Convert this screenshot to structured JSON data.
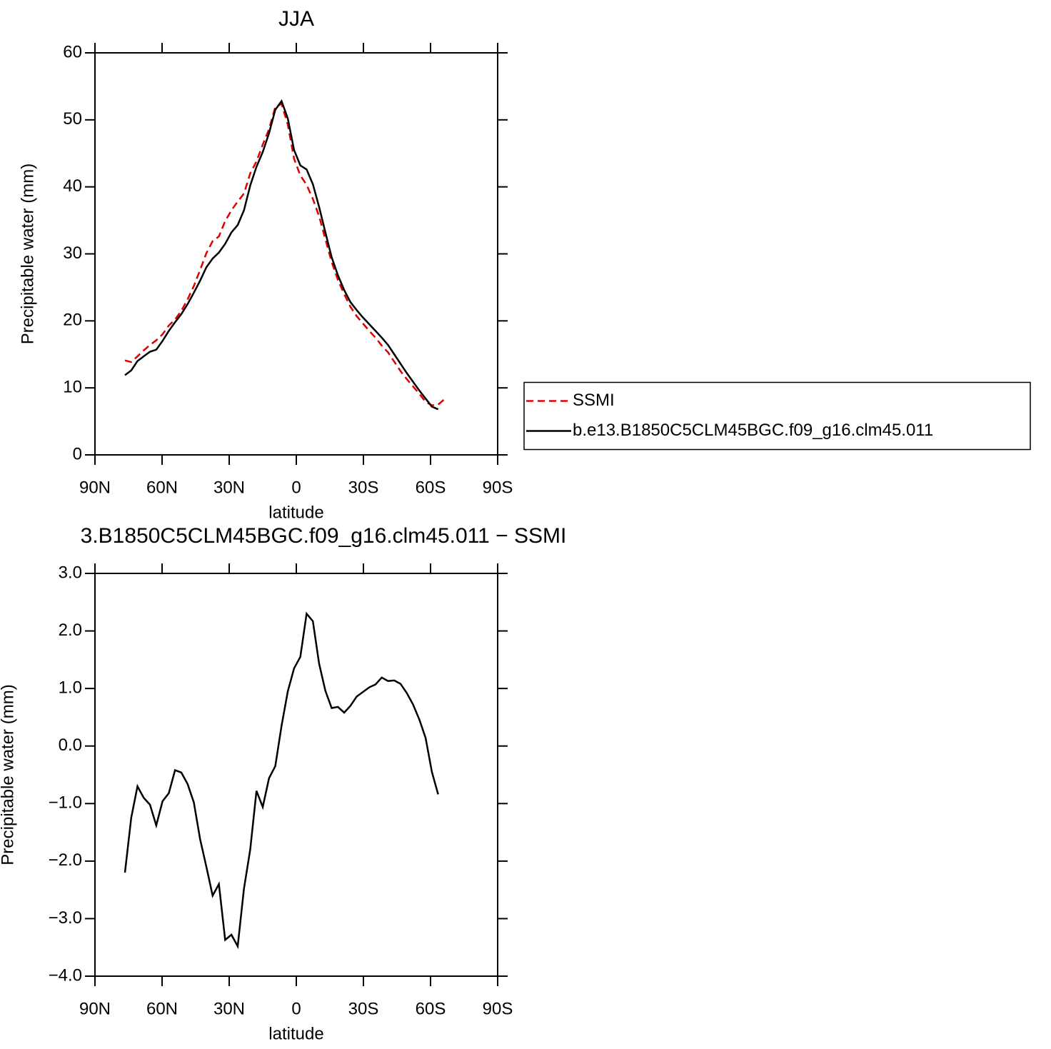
{
  "chart_data": [
    {
      "type": "line",
      "title": "JJA",
      "x_label": "latitude",
      "y_label": "Precipitable water (mm)",
      "x": [
        -76.6,
        -73.8,
        -71.0,
        -68.2,
        -65.4,
        -62.6,
        -59.8,
        -57.0,
        -54.2,
        -51.4,
        -48.6,
        -45.8,
        -43.0,
        -40.2,
        -37.4,
        -34.6,
        -31.8,
        -29.0,
        -26.2,
        -23.4,
        -20.6,
        -17.8,
        -15.0,
        -12.2,
        -9.4,
        -6.6,
        -3.8,
        -1.0,
        1.8,
        4.6,
        7.4,
        10.2,
        13.0,
        15.8,
        18.6,
        21.4,
        24.2,
        27.0,
        29.8,
        32.6,
        35.4,
        38.2,
        41.0,
        43.8,
        46.6,
        49.4,
        52.2,
        55.0,
        57.8,
        60.6,
        63.4,
        66.2
      ],
      "xlim": [
        -90,
        90
      ],
      "xticks": [
        {
          "value": -90,
          "label": "90N"
        },
        {
          "value": -60,
          "label": "60N"
        },
        {
          "value": -30,
          "label": "30N"
        },
        0,
        {
          "value": 30,
          "label": "30S"
        },
        {
          "value": 60,
          "label": "60S"
        },
        {
          "value": 90,
          "label": "90S"
        }
      ],
      "ylim": [
        0,
        60
      ],
      "yticks": [
        0,
        10,
        20,
        30,
        40,
        50,
        60
      ],
      "legend": "right",
      "series": [
        {
          "name": "SSMI",
          "color": "#e00000",
          "style": "dashed",
          "values": [
            14.1,
            13.85,
            14.7,
            15.6,
            16.4,
            17.1,
            18.0,
            19.3,
            20.2,
            21.5,
            23.2,
            25.2,
            27.6,
            30.1,
            31.9,
            32.6,
            34.9,
            36.5,
            37.8,
            39.0,
            42.0,
            43.8,
            46.3,
            48.6,
            51.9,
            52.4,
            49.3,
            44.2,
            41.7,
            40.3,
            38.2,
            35.6,
            32.2,
            28.8,
            26.1,
            24.0,
            22.1,
            20.7,
            19.6,
            18.5,
            17.5,
            16.3,
            15.3,
            13.9,
            12.5,
            11.3,
            10.2,
            9.1,
            7.9,
            7.4,
            7.5,
            8.3
          ]
        },
        {
          "name": "b.e13.B1850C5CLM45BGC.f09_g16.clm45.011",
          "color": "#000000",
          "style": "solid",
          "values": [
            11.9,
            12.6,
            14.0,
            14.7,
            15.4,
            15.7,
            17.0,
            18.5,
            19.8,
            21.0,
            22.5,
            24.2,
            26.0,
            28.0,
            29.3,
            30.2,
            31.5,
            33.2,
            34.3,
            36.5,
            40.2,
            43.0,
            45.2,
            48.0,
            51.5,
            52.8,
            50.2,
            45.5,
            43.2,
            42.6,
            40.4,
            37.0,
            33.2,
            29.5,
            26.8,
            24.6,
            22.8,
            21.6,
            20.5,
            19.5,
            18.5,
            17.5,
            16.4,
            15.0,
            13.6,
            12.2,
            10.9,
            9.6,
            8.4,
            7.2,
            6.8,
            null
          ]
        }
      ]
    },
    {
      "type": "line",
      "title": "3.B1850C5CLM45BGC.f09_g16.clm45.011 − SSMI",
      "x_label": "latitude",
      "y_label": "Precipitable water (mm)",
      "x": [
        -76.6,
        -73.8,
        -71.0,
        -68.2,
        -65.4,
        -62.6,
        -59.8,
        -57.0,
        -54.2,
        -51.4,
        -48.6,
        -45.8,
        -43.0,
        -40.2,
        -37.4,
        -34.6,
        -31.8,
        -29.0,
        -26.2,
        -23.4,
        -20.6,
        -17.8,
        -15.0,
        -12.2,
        -9.4,
        -6.6,
        -3.8,
        -1.0,
        1.8,
        4.6,
        7.4,
        10.2,
        13.0,
        15.8,
        18.6,
        21.4,
        24.2,
        27.0,
        29.8,
        32.6,
        35.4,
        38.2,
        41.0,
        43.8,
        46.6,
        49.4,
        52.2,
        55.0,
        57.8,
        60.6,
        63.4
      ],
      "xlim": [
        -90,
        90
      ],
      "xticks": [
        {
          "value": -90,
          "label": "90N"
        },
        {
          "value": -60,
          "label": "60N"
        },
        {
          "value": -30,
          "label": "30N"
        },
        0,
        {
          "value": 30,
          "label": "30S"
        },
        {
          "value": 60,
          "label": "60S"
        },
        {
          "value": 90,
          "label": "90S"
        }
      ],
      "ylim": [
        -4,
        3
      ],
      "yticks": [
        {
          "value": -4,
          "label": "−4.0"
        },
        {
          "value": -3,
          "label": "−3.0"
        },
        {
          "value": -2,
          "label": "−2.0"
        },
        {
          "value": -1,
          "label": "−1.0"
        },
        {
          "value": 0,
          "label": "0.0"
        },
        {
          "value": 1,
          "label": "1.0"
        },
        {
          "value": 2,
          "label": "2.0"
        },
        {
          "value": 3,
          "label": "3.0"
        }
      ],
      "series": [
        {
          "color": "#000000",
          "style": "solid",
          "values": [
            -2.2,
            -1.25,
            -0.7,
            -0.9,
            -1.02,
            -1.38,
            -0.96,
            -0.82,
            -0.42,
            -0.46,
            -0.66,
            -0.98,
            -1.62,
            -2.1,
            -2.6,
            -2.4,
            -3.37,
            -3.28,
            -3.48,
            -2.48,
            -1.8,
            -0.78,
            -1.06,
            -0.56,
            -0.35,
            0.35,
            0.95,
            1.35,
            1.55,
            2.3,
            2.17,
            1.43,
            0.96,
            0.66,
            0.68,
            0.58,
            0.7,
            0.86,
            0.94,
            1.02,
            1.07,
            1.19,
            1.13,
            1.14,
            1.08,
            0.92,
            0.72,
            0.46,
            0.14,
            -0.45,
            -0.84
          ]
        }
      ]
    }
  ]
}
